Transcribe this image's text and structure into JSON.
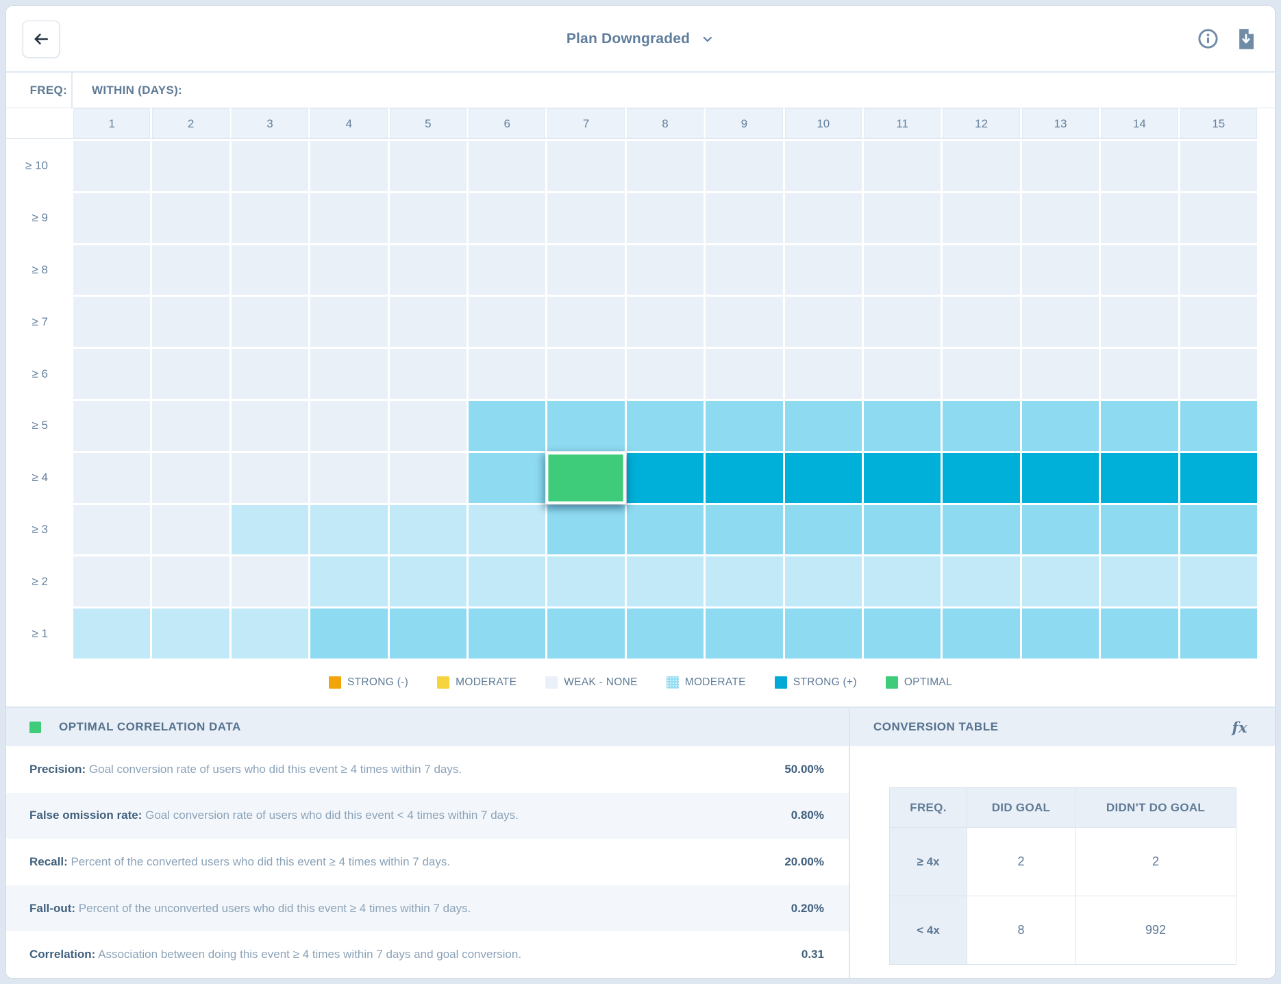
{
  "topbar": {
    "title": "Plan Downgraded"
  },
  "heatmap": {
    "freq_label": "FREQ:",
    "within_label": "WITHIN (DAYS):",
    "columns": [
      "1",
      "2",
      "3",
      "4",
      "5",
      "6",
      "7",
      "8",
      "9",
      "10",
      "11",
      "12",
      "13",
      "14",
      "15"
    ],
    "rows": [
      {
        "label": "≥ 10",
        "cells": "WWWWWWWWWWWWWWW"
      },
      {
        "label": "≥ 9",
        "cells": "WWWWWWWWWWWWWWW"
      },
      {
        "label": "≥ 8",
        "cells": "WWWWWWWWWWWWWWW"
      },
      {
        "label": "≥ 7",
        "cells": "WWWWWWWWWWWWWWW"
      },
      {
        "label": "≥ 6",
        "cells": "WWWWWWWWWWWWWWW"
      },
      {
        "label": "≥ 5",
        "cells": "WWWWWMMMMMMMMMM"
      },
      {
        "label": "≥ 4",
        "cells": "WWWWWMOSSSSSSSS"
      },
      {
        "label": "≥ 3",
        "cells": "WWLLLLMMMMMMMMM"
      },
      {
        "label": "≥ 2",
        "cells": "WWWLLLLLLLLLLLL"
      },
      {
        "label": "≥ 1",
        "cells": "LLLMMMMMMMMMMMM"
      }
    ],
    "colors": {
      "W": "#e9f0f8",
      "L": "#c1e9f7",
      "M": "#8edaf1",
      "S": "#00b0d9",
      "O": "#3ecb7a"
    }
  },
  "legend": {
    "items": [
      {
        "label": "STRONG (-)",
        "color": "#f2a50b",
        "textured": false
      },
      {
        "label": "MODERATE",
        "color": "#f6d440",
        "textured": false
      },
      {
        "label": "WEAK - NONE",
        "color": "#e9f0f8",
        "textured": false
      },
      {
        "label": "MODERATE",
        "color": "#8edaf1",
        "textured": true
      },
      {
        "label": "STRONG (+)",
        "color": "#00a9d6",
        "textured": false
      },
      {
        "label": "OPTIMAL",
        "color": "#3ecb7a",
        "textured": false
      }
    ]
  },
  "panels": {
    "optimal": {
      "title": "OPTIMAL CORRELATION DATA",
      "swatch_color": "#3ecb7a",
      "stats": [
        {
          "label": "Precision:",
          "description": "Goal conversion rate of users who did this event ≥ 4 times within 7 days.",
          "value": "50.00%"
        },
        {
          "label": "False omission rate:",
          "description": "Goal conversion rate of users who did this event < 4 times within 7 days.",
          "value": "0.80%"
        },
        {
          "label": "Recall:",
          "description": "Percent of the converted users who did this event ≥ 4 times within 7 days.",
          "value": "20.00%"
        },
        {
          "label": "Fall-out:",
          "description": "Percent of the unconverted users who did this event ≥ 4 times within 7 days.",
          "value": "0.20%"
        },
        {
          "label": "Correlation:",
          "description": "Association between doing this event ≥ 4 times within 7 days and goal conversion.",
          "value": "0.31"
        }
      ]
    },
    "conversion": {
      "title": "CONVERSION TABLE",
      "fx_label": "fx",
      "table": {
        "headers": [
          "FREQ.",
          "DID GOAL",
          "DIDN'T DO GOAL"
        ],
        "rows": [
          {
            "freq": "≥ 4x",
            "did": "2",
            "didnt": "2"
          },
          {
            "freq": "< 4x",
            "did": "8",
            "didnt": "992"
          }
        ]
      }
    }
  },
  "chart_data": {
    "type": "heatmap",
    "title": "Event frequency vs. days-window correlation heatmap",
    "x_categories": [
      "1",
      "2",
      "3",
      "4",
      "5",
      "6",
      "7",
      "8",
      "9",
      "10",
      "11",
      "12",
      "13",
      "14",
      "15"
    ],
    "y_categories": [
      "≥ 10",
      "≥ 9",
      "≥ 8",
      "≥ 7",
      "≥ 6",
      "≥ 5",
      "≥ 4",
      "≥ 3",
      "≥ 2",
      "≥ 1"
    ],
    "value_legend": {
      "W": "weak-none",
      "L": "light moderate (+)",
      "M": "moderate (+)",
      "S": "strong (+)",
      "O": "optimal"
    },
    "values": [
      [
        "W",
        "W",
        "W",
        "W",
        "W",
        "W",
        "W",
        "W",
        "W",
        "W",
        "W",
        "W",
        "W",
        "W",
        "W"
      ],
      [
        "W",
        "W",
        "W",
        "W",
        "W",
        "W",
        "W",
        "W",
        "W",
        "W",
        "W",
        "W",
        "W",
        "W",
        "W"
      ],
      [
        "W",
        "W",
        "W",
        "W",
        "W",
        "W",
        "W",
        "W",
        "W",
        "W",
        "W",
        "W",
        "W",
        "W",
        "W"
      ],
      [
        "W",
        "W",
        "W",
        "W",
        "W",
        "W",
        "W",
        "W",
        "W",
        "W",
        "W",
        "W",
        "W",
        "W",
        "W"
      ],
      [
        "W",
        "W",
        "W",
        "W",
        "W",
        "W",
        "W",
        "W",
        "W",
        "W",
        "W",
        "W",
        "W",
        "W",
        "W"
      ],
      [
        "W",
        "W",
        "W",
        "W",
        "W",
        "M",
        "M",
        "M",
        "M",
        "M",
        "M",
        "M",
        "M",
        "M",
        "M"
      ],
      [
        "W",
        "W",
        "W",
        "W",
        "W",
        "M",
        "O",
        "S",
        "S",
        "S",
        "S",
        "S",
        "S",
        "S",
        "S"
      ],
      [
        "W",
        "W",
        "L",
        "L",
        "L",
        "L",
        "M",
        "M",
        "M",
        "M",
        "M",
        "M",
        "M",
        "M",
        "M"
      ],
      [
        "W",
        "W",
        "W",
        "L",
        "L",
        "L",
        "L",
        "L",
        "L",
        "L",
        "L",
        "L",
        "L",
        "L",
        "L"
      ],
      [
        "L",
        "L",
        "L",
        "M",
        "M",
        "M",
        "M",
        "M",
        "M",
        "M",
        "M",
        "M",
        "M",
        "M",
        "M"
      ]
    ],
    "selected_cell": {
      "row": "≥ 4",
      "column": "7",
      "category": "optimal"
    },
    "legend_position": "bottom"
  }
}
